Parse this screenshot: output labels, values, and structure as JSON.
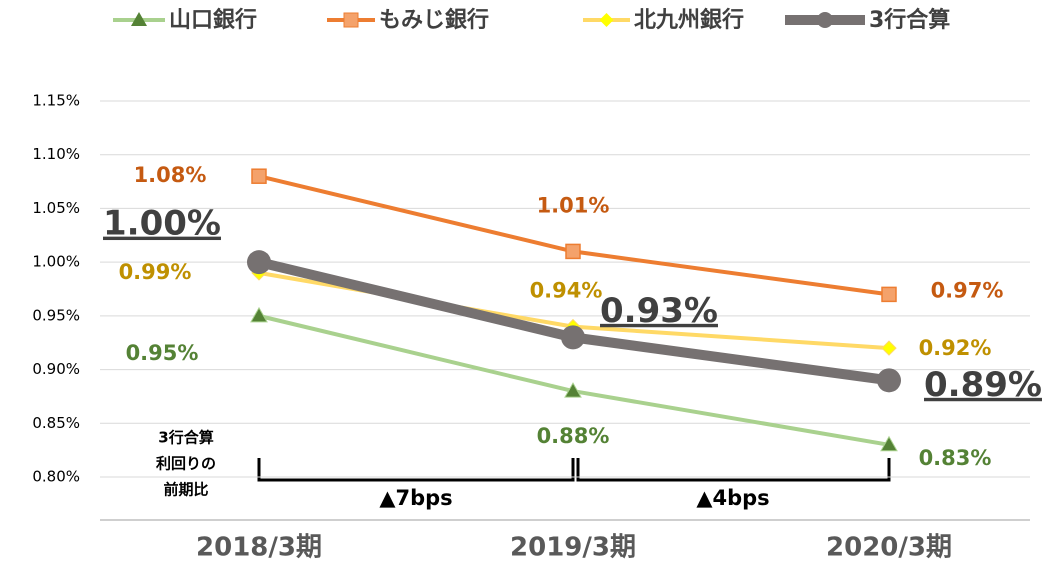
{
  "chart_data": {
    "type": "line",
    "categories": [
      "2018/3期",
      "2019/3期",
      "2020/3期"
    ],
    "series": [
      {
        "name": "山口銀行",
        "color": "#a9d18e",
        "marker_color": "#548235",
        "label_color": "#548235",
        "values": [
          0.95,
          0.88,
          0.83
        ],
        "value_labels": [
          "0.95%",
          "0.88%",
          "0.83%"
        ]
      },
      {
        "name": "もみじ銀行",
        "color": "#ed7d31",
        "marker_color": "#f4a26b",
        "label_color": "#c55a11",
        "values": [
          1.08,
          1.01,
          0.97
        ],
        "value_labels": [
          "1.08%",
          "1.01%",
          "0.97%"
        ]
      },
      {
        "name": "北九州銀行",
        "color": "#ffd966",
        "marker_color": "#ffff00",
        "label_color": "#bf9000",
        "values": [
          0.99,
          0.94,
          0.92
        ],
        "value_labels": [
          "0.99%",
          "0.94%",
          "0.92%"
        ]
      },
      {
        "name": "3行合算",
        "color": "#767171",
        "marker_color": "#767171",
        "label_color": "#404040",
        "values": [
          1.0,
          0.93,
          0.89
        ],
        "value_labels": [
          "1.00%",
          "0.93%",
          "0.89%"
        ]
      }
    ],
    "ylim": [
      0.76,
      1.15
    ],
    "yticks": [
      {
        "value": 0.8,
        "label": "0.80%"
      },
      {
        "value": 0.85,
        "label": "0.85%"
      },
      {
        "value": 0.9,
        "label": "0.90%"
      },
      {
        "value": 0.95,
        "label": "0.95%"
      },
      {
        "value": 1.0,
        "label": "1.00%"
      },
      {
        "value": 1.05,
        "label": "1.05%"
      },
      {
        "value": 1.1,
        "label": "1.10%"
      },
      {
        "value": 1.15,
        "label": "1.15%"
      }
    ],
    "grid": true,
    "legend": "top",
    "note_lines": [
      "3行合算",
      "利回りの",
      "前期比"
    ],
    "changes": [
      "▲7bps",
      "▲4bps"
    ]
  }
}
